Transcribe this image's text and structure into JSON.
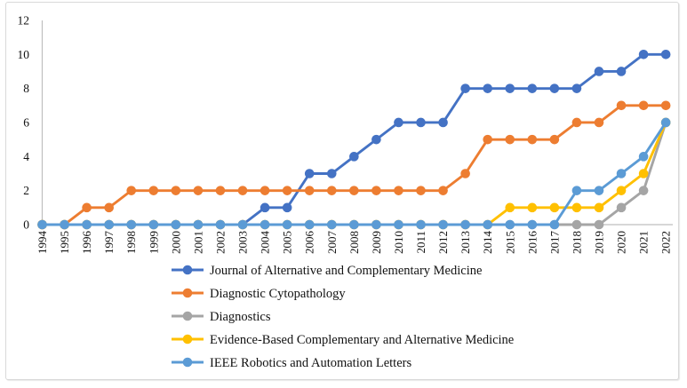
{
  "chart_data": {
    "type": "line",
    "title": "",
    "xlabel": "",
    "ylabel": "",
    "x": [
      "1994",
      "1995",
      "1996",
      "1997",
      "1998",
      "1999",
      "2000",
      "2001",
      "2002",
      "2003",
      "2004",
      "2005",
      "2006",
      "2007",
      "2008",
      "2009",
      "2010",
      "2011",
      "2012",
      "2013",
      "2014",
      "2015",
      "2016",
      "2017",
      "2018",
      "2019",
      "2020",
      "2021",
      "2022"
    ],
    "ylim": [
      0,
      12
    ],
    "yticks": [
      0,
      2,
      4,
      6,
      8,
      10,
      12
    ],
    "grid": false,
    "legend_position": "bottom-left",
    "axis_color": "#bfbfbf",
    "series": [
      {
        "name": "Journal of Alternative and Complementary Medicine",
        "color": "#4472c4",
        "values": [
          0,
          0,
          0,
          0,
          0,
          0,
          0,
          0,
          0,
          0,
          1,
          1,
          3,
          3,
          4,
          5,
          6,
          6,
          6,
          8,
          8,
          8,
          8,
          8,
          8,
          9,
          9,
          10,
          10
        ]
      },
      {
        "name": "Diagnostic Cytopathology",
        "color": "#ed7d31",
        "values": [
          0,
          0,
          1,
          1,
          2,
          2,
          2,
          2,
          2,
          2,
          2,
          2,
          2,
          2,
          2,
          2,
          2,
          2,
          2,
          3,
          5,
          5,
          5,
          5,
          6,
          6,
          7,
          7,
          7
        ]
      },
      {
        "name": "Diagnostics",
        "color": "#a5a5a5",
        "values": [
          0,
          0,
          0,
          0,
          0,
          0,
          0,
          0,
          0,
          0,
          0,
          0,
          0,
          0,
          0,
          0,
          0,
          0,
          0,
          0,
          0,
          0,
          0,
          0,
          0,
          0,
          1,
          2,
          6
        ]
      },
      {
        "name": "Evidence-Based Complementary and Alternative Medicine",
        "color": "#ffc000",
        "values": [
          0,
          0,
          0,
          0,
          0,
          0,
          0,
          0,
          0,
          0,
          0,
          0,
          0,
          0,
          0,
          0,
          0,
          0,
          0,
          0,
          0,
          1,
          1,
          1,
          1,
          1,
          2,
          3,
          6
        ]
      },
      {
        "name": "IEEE Robotics and Automation Letters",
        "color": "#5b9bd5",
        "values": [
          0,
          0,
          0,
          0,
          0,
          0,
          0,
          0,
          0,
          0,
          0,
          0,
          0,
          0,
          0,
          0,
          0,
          0,
          0,
          0,
          0,
          0,
          0,
          0,
          2,
          2,
          3,
          4,
          6
        ]
      }
    ]
  }
}
